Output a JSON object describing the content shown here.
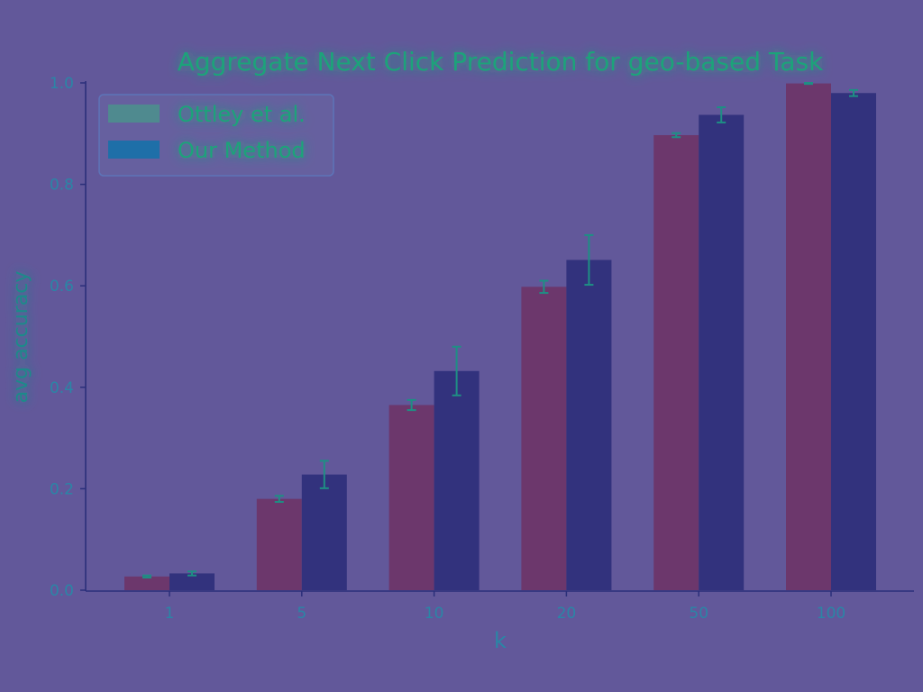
{
  "chart_data": {
    "type": "bar",
    "title": "Aggregate Next Click Prediction for geo-based Task",
    "xlabel": "k",
    "ylabel": "avg accuracy",
    "categories": [
      "1",
      "5",
      "10",
      "20",
      "50",
      "100"
    ],
    "series": [
      {
        "name": "Ottley et al.",
        "values": [
          0.027,
          0.18,
          0.365,
          0.598,
          0.897,
          0.999
        ],
        "errors": [
          0.002,
          0.006,
          0.01,
          0.012,
          0.004,
          0.001
        ],
        "color": "#6c3468"
      },
      {
        "name": "Our Method",
        "values": [
          0.033,
          0.228,
          0.432,
          0.651,
          0.937,
          0.98
        ],
        "errors": [
          0.004,
          0.027,
          0.048,
          0.049,
          0.015,
          0.006
        ],
        "color": "#2e2f7b"
      }
    ],
    "ylim": [
      0,
      1.0
    ],
    "yticks": [
      "0.0",
      "0.2",
      "0.4",
      "0.6",
      "0.8",
      "1.0"
    ],
    "legend": "top-left",
    "grid": false
  }
}
